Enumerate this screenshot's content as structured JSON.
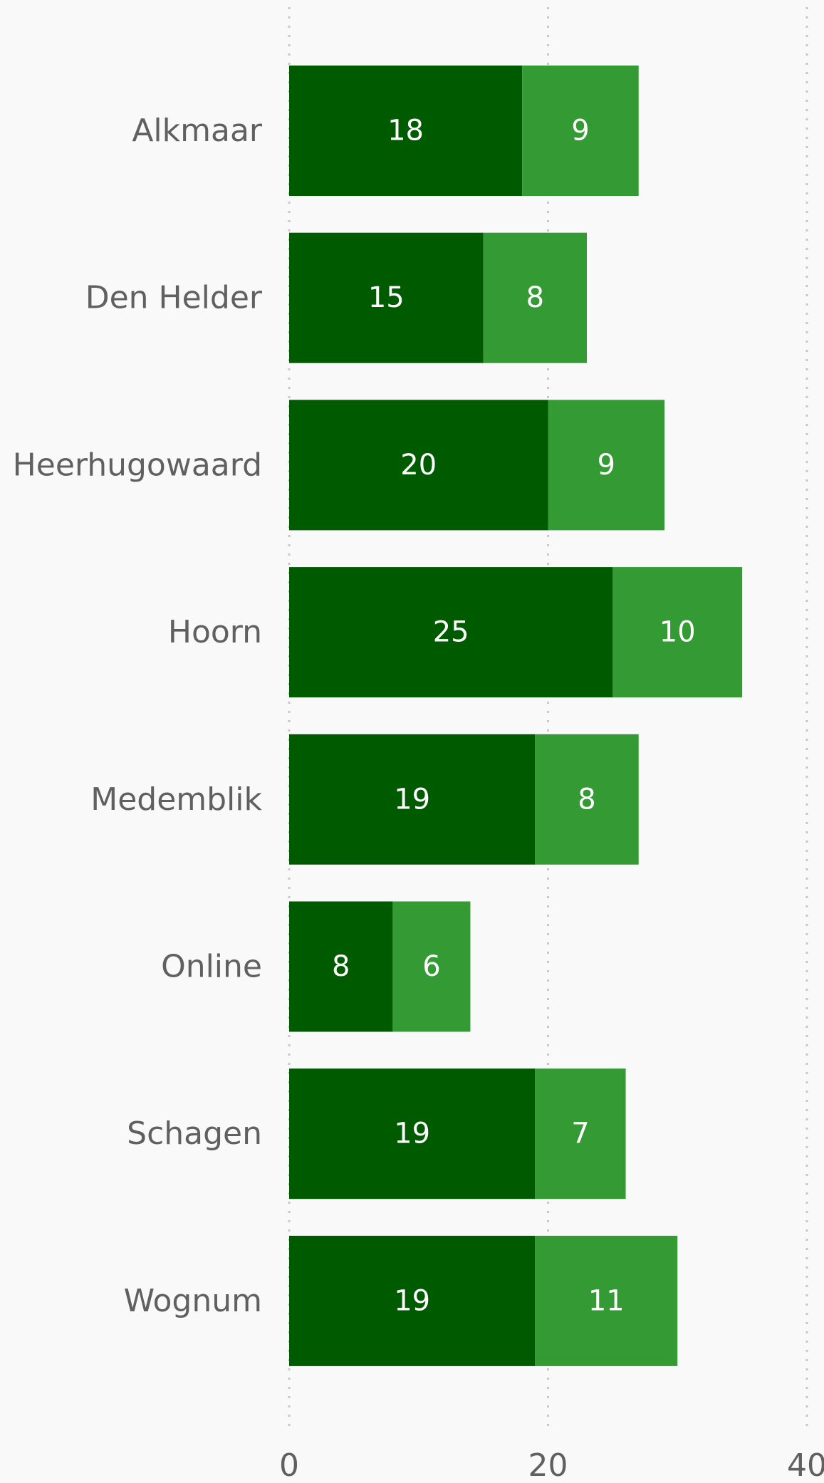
{
  "chart_data": {
    "type": "bar",
    "orientation": "horizontal",
    "stacked": true,
    "categories": [
      "Alkmaar",
      "Den Helder",
      "Heerhugowaard",
      "Hoorn",
      "Medemblik",
      "Online",
      "Schagen",
      "Wognum"
    ],
    "series": [
      {
        "values": [
          18,
          15,
          20,
          25,
          19,
          8,
          19,
          19
        ],
        "color": "#005a00"
      },
      {
        "values": [
          9,
          8,
          9,
          10,
          8,
          6,
          7,
          11
        ],
        "color": "#349a34"
      }
    ],
    "xlim": [
      0,
      40
    ],
    "xticks": [
      0,
      20,
      40
    ],
    "xtick_labels": [
      "0",
      "20",
      "40"
    ],
    "grid": "vertical-dotted",
    "data_labels": true,
    "title": "",
    "xlabel": "",
    "ylabel": ""
  }
}
